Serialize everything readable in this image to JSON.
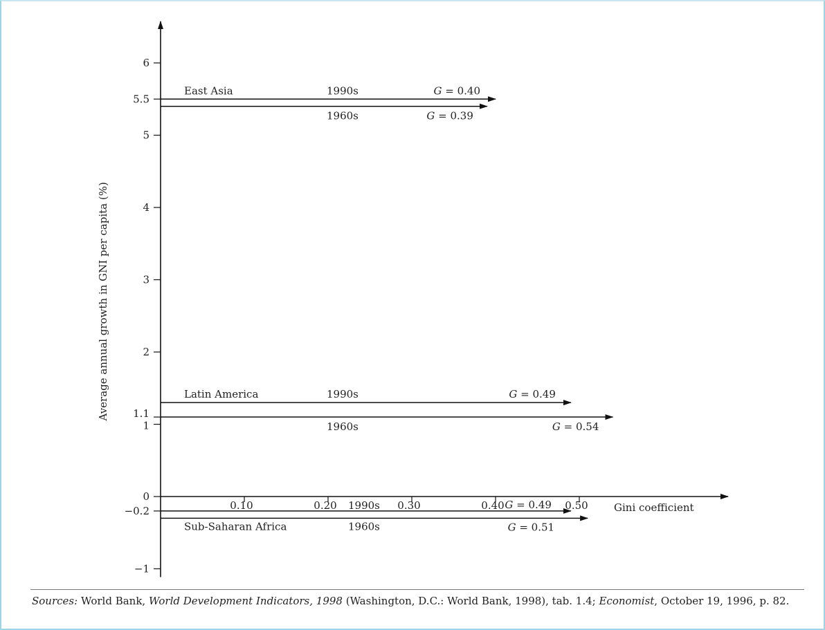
{
  "chart_data": {
    "type": "line",
    "xlabel": "Gini coefficient",
    "ylabel": "Average annual growth in GNI per capita (%)",
    "x_ticks": [
      "0.10",
      "0.20",
      "0.30",
      "0.40",
      "0.50"
    ],
    "y_ticks": [
      "6",
      "5.5",
      "5",
      "4",
      "3",
      "2",
      "1.1",
      "1",
      "0",
      "−0.2",
      "−1"
    ],
    "xlim": [
      0,
      0.5
    ],
    "ylim": [
      -1,
      6
    ],
    "series": [
      {
        "name": "East Asia",
        "segments": [
          {
            "period": "1990s",
            "growth": 5.5,
            "gini": 0.4,
            "label": "G = 0.40"
          },
          {
            "period": "1960s",
            "growth": 5.4,
            "gini": 0.39,
            "label": "G = 0.39"
          }
        ]
      },
      {
        "name": "Latin America",
        "segments": [
          {
            "period": "1990s",
            "growth": 1.3,
            "gini": 0.49,
            "label": "G = 0.49"
          },
          {
            "period": "1960s",
            "growth": 1.1,
            "gini": 0.54,
            "label": "G = 0.54"
          }
        ]
      },
      {
        "name": "Sub-Saharan Africa",
        "segments": [
          {
            "period": "1990s",
            "growth": -0.2,
            "gini": 0.49,
            "label": "G = 0.49"
          },
          {
            "period": "1960s",
            "growth": -0.3,
            "gini": 0.51,
            "label": "G = 0.51"
          }
        ]
      }
    ]
  },
  "source": {
    "prefix": "Sources:",
    "part1": " World Bank, ",
    "publication": "World Development Indicators, 1998",
    "part2": " (Washington, D.C.: World Bank, 1998), tab. 1.4; ",
    "magazine": "Economist",
    "part3": ", October 19, 1996, p. 82."
  }
}
